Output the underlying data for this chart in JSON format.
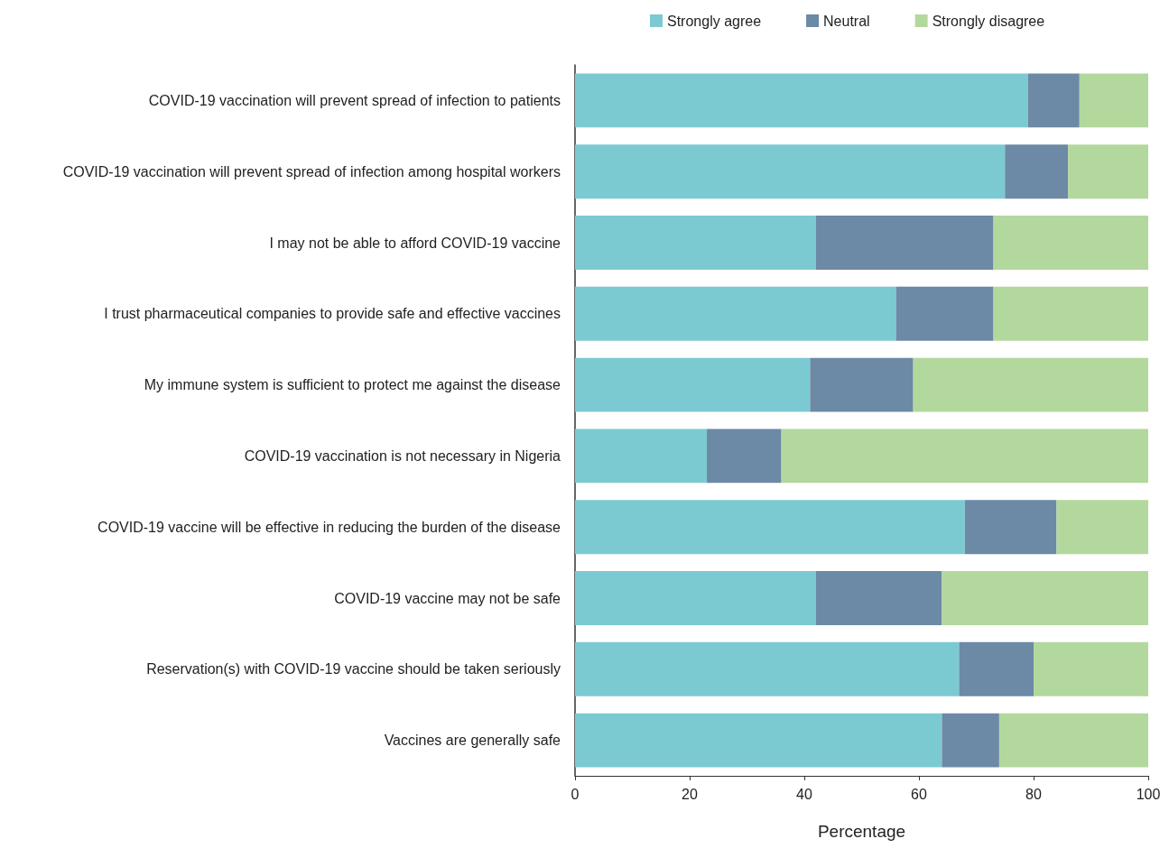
{
  "chart_data": {
    "type": "bar",
    "orientation": "horizontal",
    "stacked": true,
    "xlabel": "Percentage",
    "categories": [
      "COVID-19 vaccination will prevent spread of infection to patients",
      "COVID-19 vaccination will prevent spread of infection among hospital workers",
      "I may not be able to afford COVID-19 vaccine",
      "I trust pharmaceutical companies to provide safe and effective vaccines",
      "My immune system is sufficient to protect me against the disease",
      "COVID-19 vaccination is not necessary in Nigeria",
      "COVID-19 vaccine will be effective in reducing the burden of the disease",
      "COVID-19 vaccine may not be safe",
      "Reservation(s) with COVID-19 vaccine should be taken seriously",
      "Vaccines are generally safe"
    ],
    "series": [
      {
        "name": "Strongly agree",
        "color": "#7ccad1",
        "values": [
          79,
          75,
          42,
          56,
          41,
          23,
          68,
          42,
          67,
          64
        ]
      },
      {
        "name": "Neutral",
        "color": "#6c89a6",
        "values": [
          9,
          11,
          31,
          17,
          18,
          13,
          16,
          22,
          13,
          10
        ]
      },
      {
        "name": "Strongly disagree",
        "color": "#b3d89d",
        "values": [
          12,
          14,
          27,
          27,
          41,
          64,
          16,
          36,
          20,
          26
        ]
      }
    ],
    "xlim": [
      0,
      100
    ],
    "xticks": [
      0,
      20,
      40,
      60,
      80,
      100
    ],
    "grid": false,
    "legend": "top"
  }
}
